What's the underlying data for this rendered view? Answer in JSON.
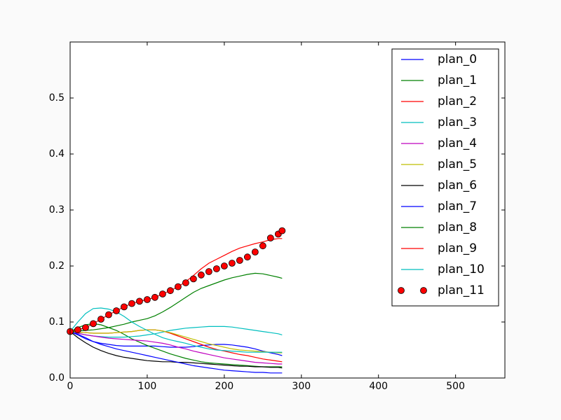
{
  "chart_data": {
    "type": "line",
    "x": [
      0,
      10,
      20,
      30,
      40,
      50,
      60,
      70,
      80,
      90,
      100,
      110,
      120,
      130,
      140,
      150,
      160,
      170,
      180,
      190,
      200,
      210,
      220,
      230,
      240,
      250,
      260,
      270,
      275
    ],
    "series": [
      {
        "name": "plan_0",
        "color": "#0000ff",
        "values": [
          0.083,
          0.077,
          0.07,
          0.065,
          0.062,
          0.06,
          0.058,
          0.057,
          0.057,
          0.057,
          0.057,
          0.057,
          0.056,
          0.055,
          0.055,
          0.055,
          0.056,
          0.058,
          0.059,
          0.06,
          0.06,
          0.059,
          0.057,
          0.055,
          0.052,
          0.048,
          0.045,
          0.042,
          0.04
        ]
      },
      {
        "name": "plan_1",
        "color": "#008000",
        "values": [
          0.083,
          0.09,
          0.095,
          0.097,
          0.095,
          0.09,
          0.085,
          0.078,
          0.07,
          0.064,
          0.058,
          0.053,
          0.048,
          0.043,
          0.039,
          0.035,
          0.032,
          0.029,
          0.027,
          0.026,
          0.025,
          0.024,
          0.023,
          0.022,
          0.021,
          0.02,
          0.02,
          0.02,
          0.02
        ]
      },
      {
        "name": "plan_2",
        "color": "#ff0000",
        "values": [
          0.083,
          0.082,
          0.081,
          0.08,
          0.08,
          0.08,
          0.081,
          0.082,
          0.083,
          0.085,
          0.086,
          0.086,
          0.084,
          0.08,
          0.075,
          0.07,
          0.065,
          0.06,
          0.055,
          0.051,
          0.048,
          0.045,
          0.042,
          0.04,
          0.037,
          0.034,
          0.032,
          0.03,
          0.029
        ]
      },
      {
        "name": "plan_3",
        "color": "#00bfbf",
        "values": [
          0.083,
          0.08,
          0.077,
          0.075,
          0.074,
          0.073,
          0.073,
          0.073,
          0.074,
          0.075,
          0.077,
          0.079,
          0.082,
          0.085,
          0.087,
          0.089,
          0.09,
          0.091,
          0.092,
          0.092,
          0.092,
          0.091,
          0.089,
          0.087,
          0.085,
          0.083,
          0.081,
          0.079,
          0.077
        ]
      },
      {
        "name": "plan_4",
        "color": "#bf00bf",
        "values": [
          0.083,
          0.08,
          0.077,
          0.075,
          0.073,
          0.071,
          0.07,
          0.069,
          0.068,
          0.067,
          0.066,
          0.064,
          0.062,
          0.059,
          0.055,
          0.052,
          0.048,
          0.045,
          0.042,
          0.039,
          0.036,
          0.034,
          0.032,
          0.03,
          0.028,
          0.027,
          0.026,
          0.025,
          0.025
        ]
      },
      {
        "name": "plan_5",
        "color": "#bfbf00",
        "values": [
          0.083,
          0.082,
          0.081,
          0.08,
          0.08,
          0.08,
          0.081,
          0.082,
          0.083,
          0.085,
          0.086,
          0.086,
          0.084,
          0.081,
          0.077,
          0.073,
          0.069,
          0.065,
          0.061,
          0.058,
          0.055,
          0.052,
          0.05,
          0.049,
          0.048,
          0.047,
          0.046,
          0.045,
          0.045
        ]
      },
      {
        "name": "plan_6",
        "color": "#000000",
        "values": [
          0.083,
          0.072,
          0.063,
          0.055,
          0.049,
          0.044,
          0.04,
          0.037,
          0.035,
          0.033,
          0.031,
          0.03,
          0.029,
          0.029,
          0.028,
          0.028,
          0.027,
          0.026,
          0.025,
          0.024,
          0.023,
          0.022,
          0.021,
          0.021,
          0.02,
          0.02,
          0.019,
          0.019,
          0.018
        ]
      },
      {
        "name": "plan_7",
        "color": "#0000ff",
        "values": [
          0.083,
          0.078,
          0.072,
          0.065,
          0.06,
          0.056,
          0.052,
          0.049,
          0.046,
          0.043,
          0.04,
          0.037,
          0.034,
          0.031,
          0.028,
          0.025,
          0.022,
          0.02,
          0.018,
          0.016,
          0.014,
          0.013,
          0.012,
          0.011,
          0.01,
          0.01,
          0.009,
          0.009,
          0.009
        ]
      },
      {
        "name": "plan_8",
        "color": "#008000",
        "values": [
          0.083,
          0.084,
          0.085,
          0.086,
          0.088,
          0.09,
          0.093,
          0.096,
          0.1,
          0.103,
          0.106,
          0.111,
          0.118,
          0.126,
          0.135,
          0.144,
          0.153,
          0.16,
          0.165,
          0.17,
          0.175,
          0.179,
          0.182,
          0.185,
          0.187,
          0.186,
          0.183,
          0.18,
          0.178
        ]
      },
      {
        "name": "plan_9",
        "color": "#ff0000",
        "values": [
          0.083,
          0.086,
          0.09,
          0.097,
          0.105,
          0.113,
          0.12,
          0.127,
          0.133,
          0.137,
          0.14,
          0.144,
          0.15,
          0.156,
          0.163,
          0.172,
          0.183,
          0.195,
          0.205,
          0.212,
          0.219,
          0.226,
          0.232,
          0.236,
          0.24,
          0.243,
          0.247,
          0.249,
          0.249
        ]
      },
      {
        "name": "plan_10",
        "color": "#00bfbf",
        "values": [
          0.083,
          0.1,
          0.115,
          0.124,
          0.125,
          0.123,
          0.118,
          0.11,
          0.1,
          0.092,
          0.085,
          0.078,
          0.072,
          0.068,
          0.065,
          0.062,
          0.058,
          0.055,
          0.052,
          0.05,
          0.049,
          0.048,
          0.047,
          0.046,
          0.046,
          0.046,
          0.046,
          0.046,
          0.046
        ]
      },
      {
        "name": "plan_11",
        "color": "#ff0000",
        "marker": "o",
        "line": false,
        "values": [
          0.083,
          0.086,
          0.09,
          0.097,
          0.105,
          0.113,
          0.12,
          0.127,
          0.133,
          0.137,
          0.14,
          0.144,
          0.15,
          0.156,
          0.163,
          0.17,
          0.177,
          0.184,
          0.19,
          0.195,
          0.2,
          0.205,
          0.21,
          0.216,
          0.225,
          0.236,
          0.25,
          0.257,
          0.263
        ]
      }
    ],
    "xlim": [
      0,
      564
    ],
    "xticks": [
      0,
      100,
      200,
      300,
      400,
      500
    ],
    "ylim": [
      0,
      0.6
    ],
    "yticks": [
      {
        "value": 0,
        "label": "0.0"
      },
      0.1,
      0.2,
      0.3,
      0.4,
      0.5
    ],
    "legend": "upper right"
  }
}
